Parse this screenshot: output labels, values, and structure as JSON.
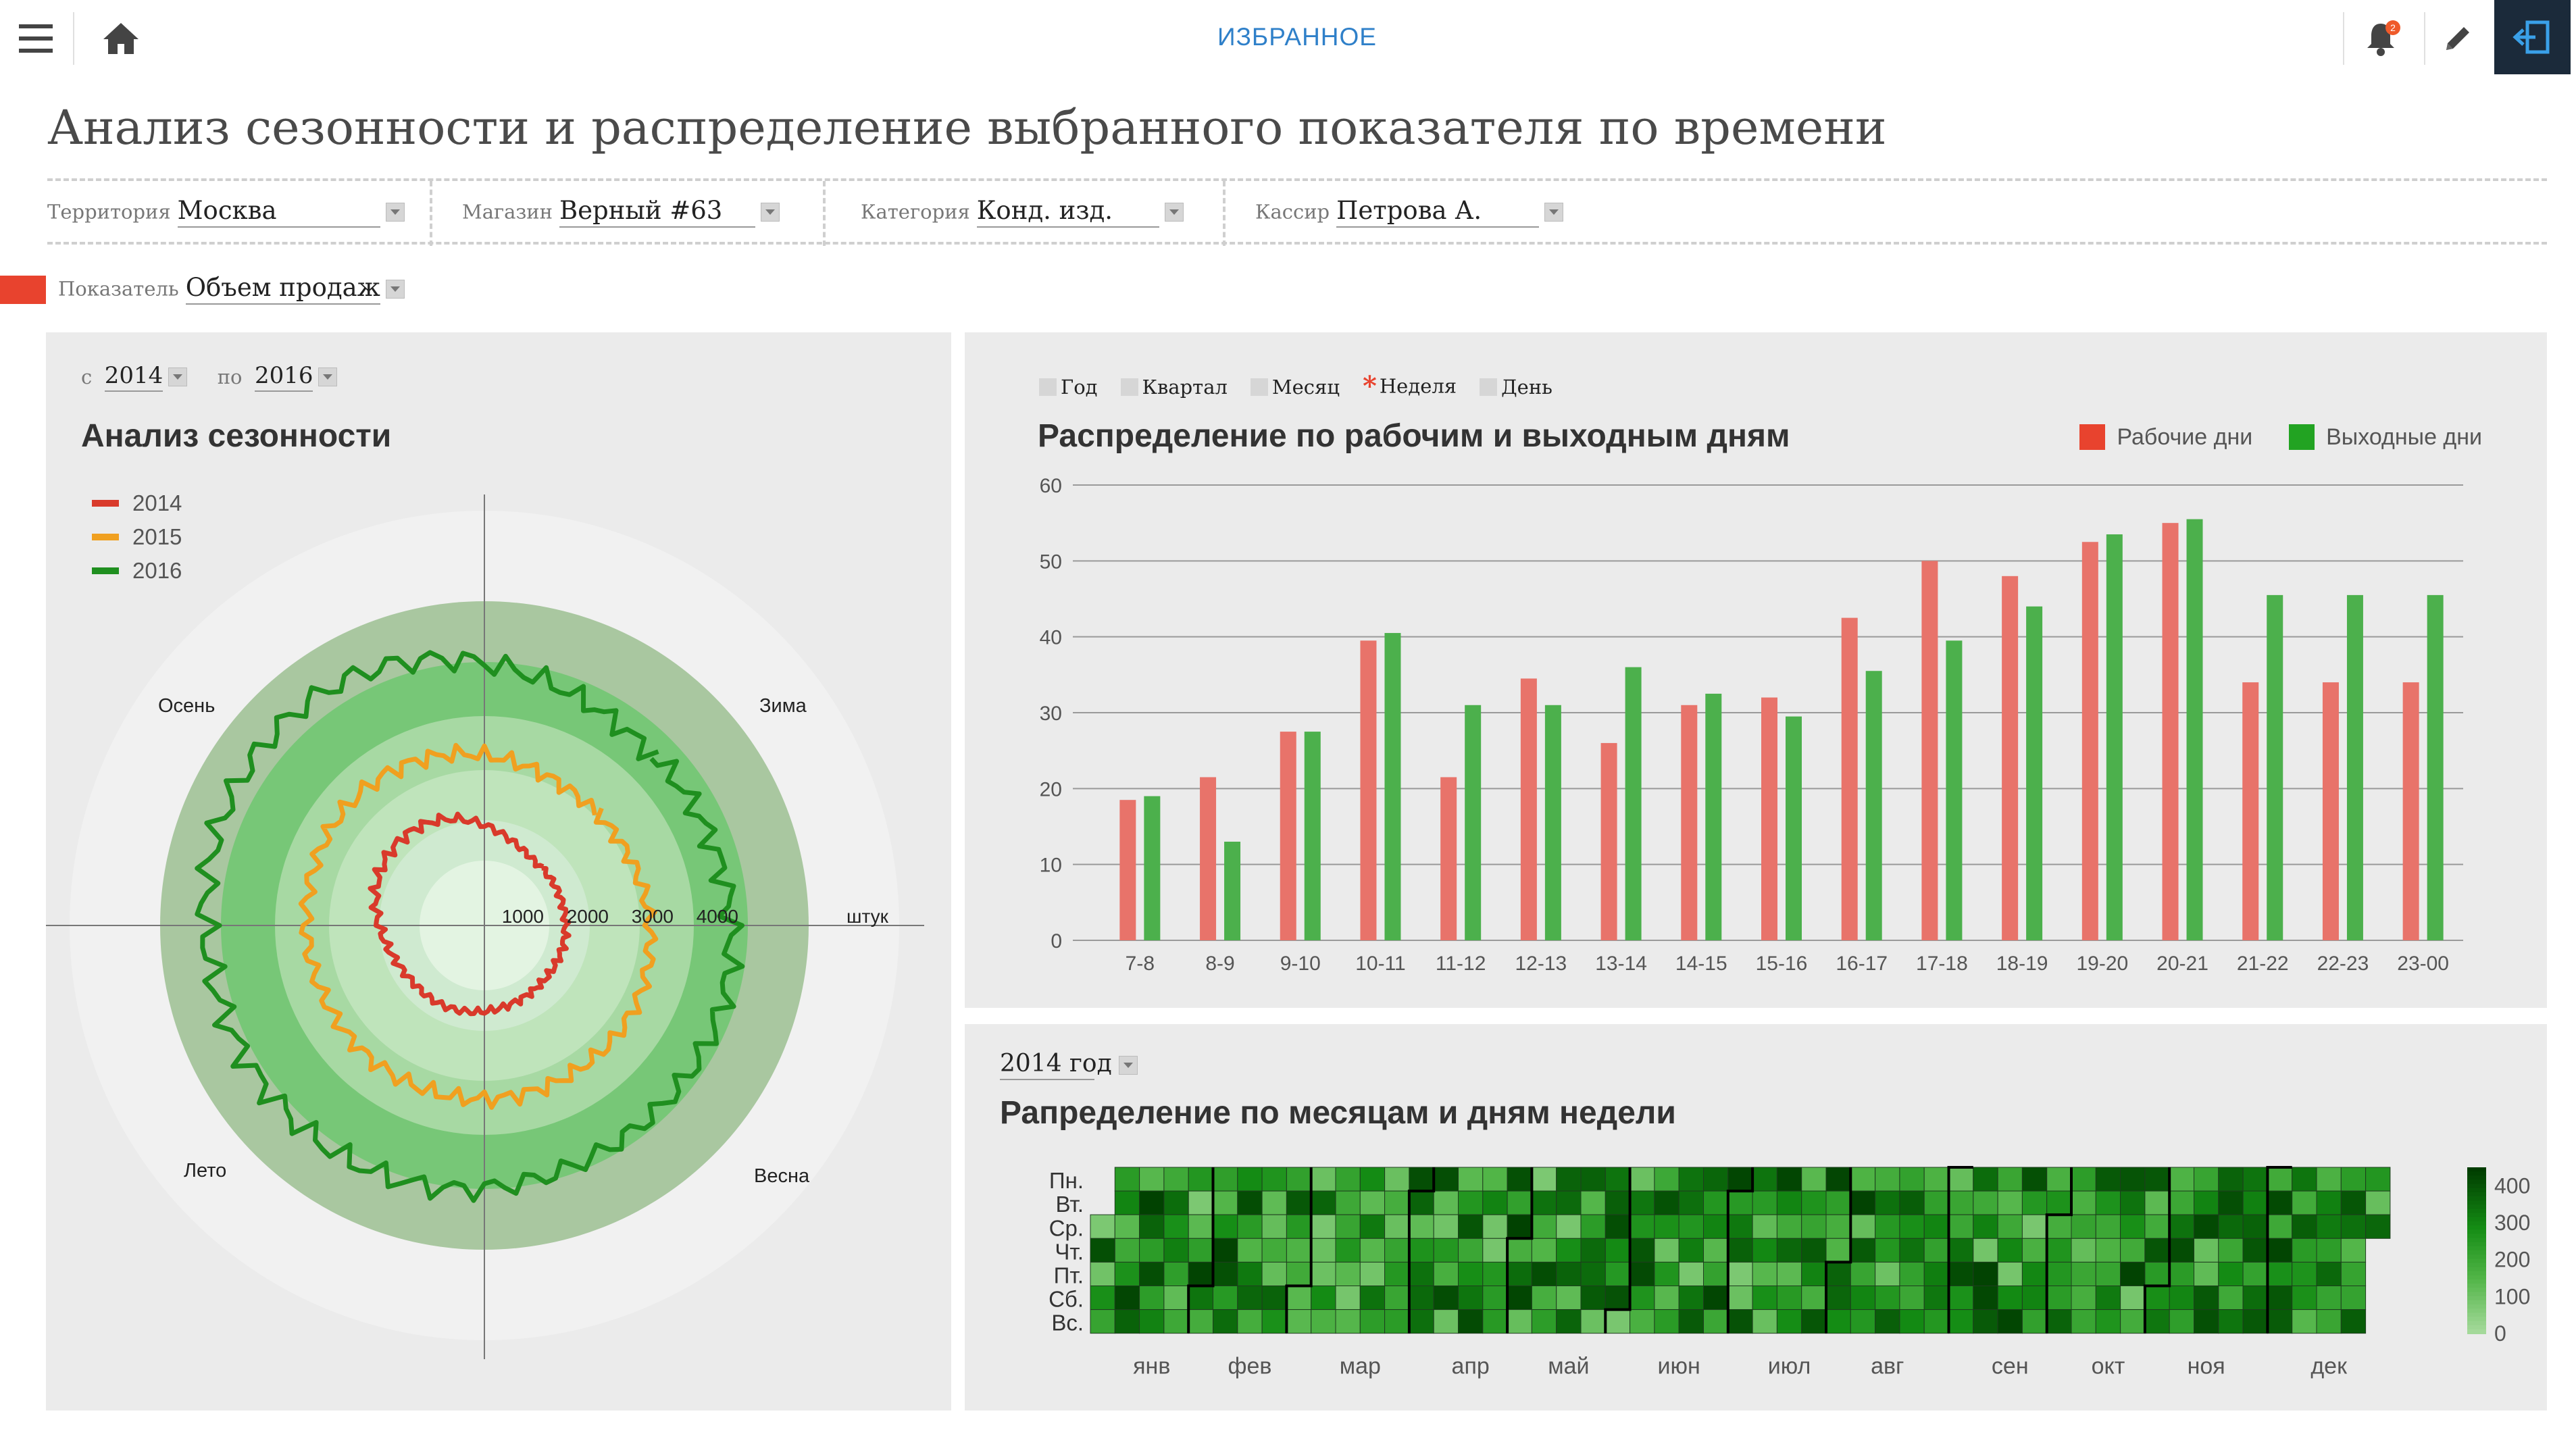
{
  "header": {
    "favorites_label": "ИЗБРАННОЕ",
    "notification_count": "2",
    "icons": [
      "menu-icon",
      "home-icon",
      "bell-icon",
      "pencil-icon",
      "exit-icon"
    ]
  },
  "page_title": "Анализ сезонности и распределение выбранного показателя по времени",
  "filters": [
    {
      "label": "Территория",
      "value": "Москва"
    },
    {
      "label": "Магазин",
      "value": "Верный #63"
    },
    {
      "label": "Категория",
      "value": "Конд. изд."
    },
    {
      "label": "Кассир",
      "value": "Петрова А."
    }
  ],
  "indicator": {
    "label": "Показатель",
    "value": "Объем продаж",
    "color": "#e8432e"
  },
  "chart_data": [
    {
      "type": "radar",
      "title": "Анализ сезонности",
      "range": {
        "from_label": "с",
        "from": "2014",
        "to_label": "по",
        "to": "2016"
      },
      "season_labels": [
        "Зима",
        "Весна",
        "Лето",
        "Осень"
      ],
      "radial_ticks": [
        "1000",
        "2000",
        "3000",
        "4000"
      ],
      "radial_unit": "штук",
      "rmax": 5000,
      "legend_position": "top-left",
      "series": [
        {
          "name": "2014",
          "color": "#d93a2b",
          "approx_radius_by_season": {
            "Зима": 1250,
            "Весна": 1250,
            "Лето": 1400,
            "Осень": 1850
          }
        },
        {
          "name": "2015",
          "color": "#f0a020",
          "approx_radius_by_season": {
            "Зима": 2450,
            "Весна": 2650,
            "Лето": 2700,
            "Осень": 2800
          }
        },
        {
          "name": "2016",
          "color": "#1f8f1f",
          "approx_radius_by_season": {
            "Зима": 3700,
            "Весна": 3900,
            "Лето": 4200,
            "Осень": 4400
          }
        }
      ]
    },
    {
      "type": "bar",
      "title": "Распределение по рабочим и выходным дням",
      "period_options": [
        {
          "label": "Год",
          "selected": false
        },
        {
          "label": "Квартал",
          "selected": false
        },
        {
          "label": "Месяц",
          "selected": false
        },
        {
          "label": "Неделя",
          "selected": true
        },
        {
          "label": "День",
          "selected": false
        }
      ],
      "categories": [
        "7-8",
        "8-9",
        "9-10",
        "10-11",
        "11-12",
        "12-13",
        "13-14",
        "14-15",
        "15-16",
        "16-17",
        "17-18",
        "18-19",
        "19-20",
        "20-21",
        "21-22",
        "22-23",
        "23-00"
      ],
      "series": [
        {
          "name": "Рабочие дни",
          "color": "#e8736a",
          "values": [
            18.5,
            21.5,
            27.5,
            39.5,
            21.5,
            34.5,
            26,
            31,
            32,
            42.5,
            50,
            48,
            52.5,
            55,
            34,
            34,
            34
          ]
        },
        {
          "name": "Выходные дни",
          "color": "#4cb04c",
          "values": [
            19,
            13,
            27.5,
            40.5,
            31,
            31,
            36,
            32.5,
            29.5,
            35.5,
            39.5,
            44,
            53.5,
            55.5,
            45.5,
            45.5,
            45.5
          ]
        }
      ],
      "ylim": [
        0,
        60
      ],
      "yticks": [
        0,
        10,
        20,
        30,
        40,
        50,
        60
      ],
      "legend_position": "top-right",
      "grid": true
    },
    {
      "type": "heatmap",
      "title": "Рапределение по месяцам и дням недели",
      "year_selector": "2014 год",
      "row_labels": [
        "Пн.",
        "Вт.",
        "Ср.",
        "Чт.",
        "Пт.",
        "Сб.",
        "Вс."
      ],
      "month_labels": [
        "янв",
        "фев",
        "мар",
        "апр",
        "май",
        "июн",
        "июл",
        "авг",
        "сен",
        "окт",
        "ноя",
        "дек"
      ],
      "colorbar_ticks": [
        "400",
        "300",
        "200",
        "100",
        "0"
      ],
      "vmin": 0,
      "vmax": 450,
      "weeks": 57,
      "first_weekday_index": 2,
      "days_in_year": 365,
      "month_lengths": [
        31,
        28,
        31,
        30,
        31,
        30,
        31,
        31,
        30,
        31,
        30,
        31
      ]
    }
  ]
}
